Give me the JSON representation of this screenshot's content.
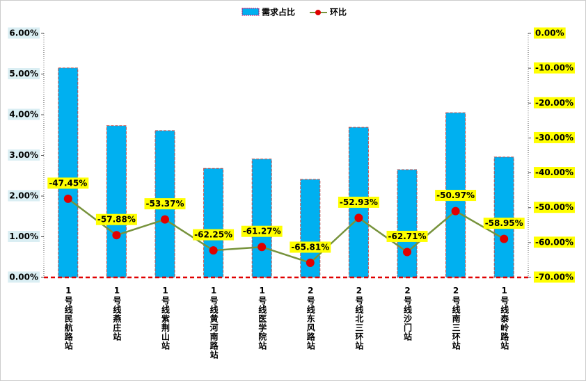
{
  "chart_data": {
    "type": "bar-line",
    "categories": [
      "1号线民航路站",
      "1号线燕庄站",
      "1号线紫荆山站",
      "1号线黄河南路站",
      "1号线医学院站",
      "2号线东风路站",
      "2号线北三环站",
      "2号线沙门站",
      "2号线南三环站",
      "1号线泰岭路站"
    ],
    "series": [
      {
        "name": "需求占比",
        "color": "#00b0f0",
        "values": [
          5.15,
          3.73,
          3.61,
          2.68,
          2.91,
          2.41,
          3.69,
          2.65,
          4.05,
          2.96
        ]
      },
      {
        "name": "环比",
        "color": "#77933c",
        "axis": "y2",
        "values": [
          -47.45,
          -57.88,
          -53.37,
          -62.25,
          -61.27,
          -65.81,
          -52.93,
          -62.71,
          -50.97,
          -58.95
        ],
        "value_labels": [
          "-47.45%",
          "-57.88%",
          "-53.37%",
          "-62.25%",
          "-61.27%",
          "-65.81%",
          "-52.93%",
          "-62.71%",
          "-50.97%",
          "-58.95%"
        ]
      }
    ],
    "ylim": [
      0,
      6
    ],
    "yticks": [
      {
        "value": 0,
        "label": "0.00%"
      },
      {
        "value": 1,
        "label": "1.00%"
      },
      {
        "value": 2,
        "label": "2.00%"
      },
      {
        "value": 3,
        "label": "3.00%"
      },
      {
        "value": 4,
        "label": "4.00%"
      },
      {
        "value": 5,
        "label": "5.00%"
      },
      {
        "value": 6,
        "label": "6.00%"
      }
    ],
    "y2lim": [
      -70,
      0
    ],
    "y2ticks": [
      {
        "value": 0,
        "label": "0.00%"
      },
      {
        "value": -10,
        "label": "-10.00%"
      },
      {
        "value": -20,
        "label": "-20.00%"
      },
      {
        "value": -30,
        "label": "-30.00%"
      },
      {
        "value": -40,
        "label": "-40.00%"
      },
      {
        "value": -50,
        "label": "-50.00%"
      },
      {
        "value": -60,
        "label": "-60.00%"
      },
      {
        "value": -70,
        "label": "-70.00%"
      }
    ],
    "marker_color": "#e00000"
  }
}
